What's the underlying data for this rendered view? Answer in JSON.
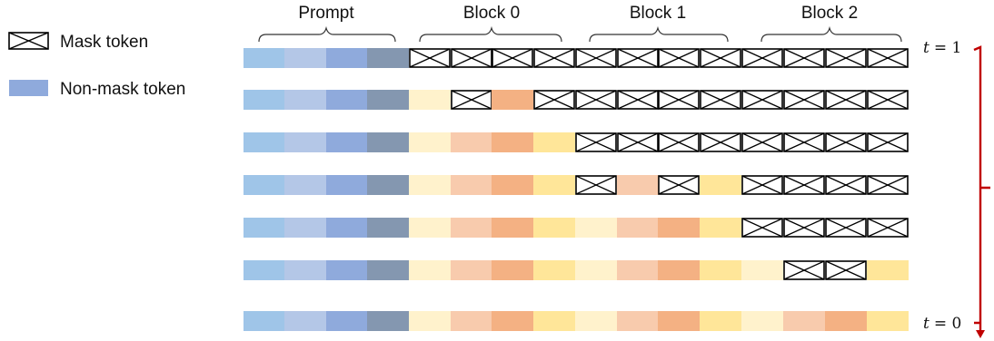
{
  "legend": {
    "mask_label": "Mask token",
    "nonmask_label": "Non-mask token"
  },
  "groups": [
    {
      "label": "Prompt"
    },
    {
      "label": "Block 0"
    },
    {
      "label": "Block 1"
    },
    {
      "label": "Block 2"
    }
  ],
  "timeline": {
    "start_label": "t = 1",
    "end_label": "t = 0",
    "start_var": "t",
    "start_value": "= 1",
    "end_var": "t",
    "end_value": "= 0"
  },
  "colors": {
    "prompt": [
      "#9fc5e8",
      "#b4c7e7",
      "#8faadc",
      "#8497b0"
    ],
    "block": [
      "#fff2cc",
      "#f8cbad",
      "#f4b183",
      "#ffe699"
    ],
    "mask_fill": "#ffffff",
    "mask_stroke": "#000000",
    "timeline": "#c00000"
  },
  "rows": [
    [
      "P0",
      "P1",
      "P2",
      "P3",
      "M",
      "M",
      "M",
      "M",
      "M",
      "M",
      "M",
      "M",
      "M",
      "M",
      "M",
      "M"
    ],
    [
      "P0",
      "P1",
      "P2",
      "P3",
      "C0",
      "M",
      "C2",
      "M",
      "M",
      "M",
      "M",
      "M",
      "M",
      "M",
      "M",
      "M"
    ],
    [
      "P0",
      "P1",
      "P2",
      "P3",
      "C0",
      "C1",
      "C2",
      "C3",
      "M",
      "M",
      "M",
      "M",
      "M",
      "M",
      "M",
      "M"
    ],
    [
      "P0",
      "P1",
      "P2",
      "P3",
      "C0",
      "C1",
      "C2",
      "C3",
      "M",
      "C1",
      "M",
      "C3",
      "M",
      "M",
      "M",
      "M"
    ],
    [
      "P0",
      "P1",
      "P2",
      "P3",
      "C0",
      "C1",
      "C2",
      "C3",
      "C0",
      "C1",
      "C2",
      "C3",
      "M",
      "M",
      "M",
      "M"
    ],
    [
      "P0",
      "P1",
      "P2",
      "P3",
      "C0",
      "C1",
      "C2",
      "C3",
      "C0",
      "C1",
      "C2",
      "C3",
      "C0",
      "M",
      "M",
      "C3"
    ],
    [
      "P0",
      "P1",
      "P2",
      "P3",
      "C0",
      "C1",
      "C2",
      "C3",
      "C0",
      "C1",
      "C2",
      "C3",
      "C0",
      "C1",
      "C2",
      "C3"
    ]
  ]
}
